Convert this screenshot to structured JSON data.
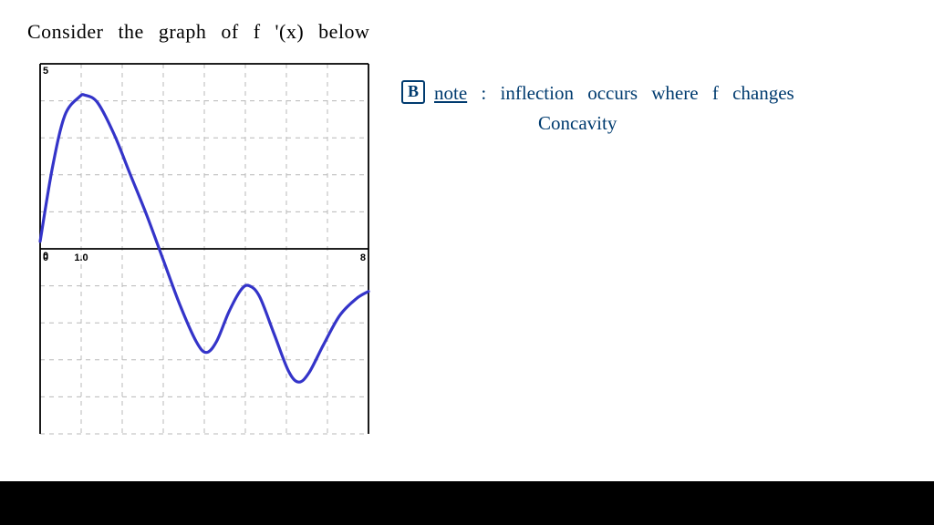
{
  "title": "Consider  the  graph  of   f '(x)   below",
  "chart": {
    "type": "line",
    "background_color": "#ffffff",
    "axis_color": "#000000",
    "grid_color": "#b8b8b8",
    "curve_color": "#3434c9",
    "curve_width": 3.2,
    "tick_font_size": 11,
    "xlim": [
      0,
      8
    ],
    "ylim": [
      -5,
      5
    ],
    "x_grid_ticks": [
      0,
      1,
      2,
      3,
      4,
      5,
      6,
      7,
      8
    ],
    "y_grid_ticks": [
      -5,
      -4,
      -3,
      -2,
      -1,
      0,
      1,
      2,
      3,
      4,
      5
    ],
    "y_axis_labels": [
      {
        "y": 5,
        "text": "5"
      },
      {
        "y": 0,
        "text": "0"
      }
    ],
    "x_axis_labels": [
      {
        "x": 0,
        "text": "0"
      },
      {
        "x": 1.0,
        "text": "1.0"
      },
      {
        "x": 8,
        "text": "8"
      }
    ],
    "points": [
      {
        "x": 0.0,
        "y": 0.2
      },
      {
        "x": 0.3,
        "y": 2.2
      },
      {
        "x": 0.6,
        "y": 3.6
      },
      {
        "x": 0.95,
        "y": 4.1
      },
      {
        "x": 1.1,
        "y": 4.15
      },
      {
        "x": 1.4,
        "y": 3.95
      },
      {
        "x": 1.8,
        "y": 3.1
      },
      {
        "x": 2.2,
        "y": 2.0
      },
      {
        "x": 2.6,
        "y": 0.9
      },
      {
        "x": 3.0,
        "y": -0.3
      },
      {
        "x": 3.4,
        "y": -1.5
      },
      {
        "x": 3.8,
        "y": -2.5
      },
      {
        "x": 4.05,
        "y": -2.8
      },
      {
        "x": 4.3,
        "y": -2.5
      },
      {
        "x": 4.6,
        "y": -1.7
      },
      {
        "x": 4.9,
        "y": -1.1
      },
      {
        "x": 5.1,
        "y": -1.0
      },
      {
        "x": 5.35,
        "y": -1.3
      },
      {
        "x": 5.7,
        "y": -2.3
      },
      {
        "x": 6.05,
        "y": -3.3
      },
      {
        "x": 6.3,
        "y": -3.6
      },
      {
        "x": 6.55,
        "y": -3.35
      },
      {
        "x": 6.9,
        "y": -2.6
      },
      {
        "x": 7.3,
        "y": -1.8
      },
      {
        "x": 7.7,
        "y": -1.35
      },
      {
        "x": 8.0,
        "y": -1.15
      }
    ]
  },
  "answer": {
    "badge": "B",
    "note_label": "note",
    "line1": ":   inflection   occurs   where   f   changes",
    "line2": "Concavity"
  },
  "colors": {
    "ink_blue": "#003b6f",
    "ink_black": "#000000"
  }
}
